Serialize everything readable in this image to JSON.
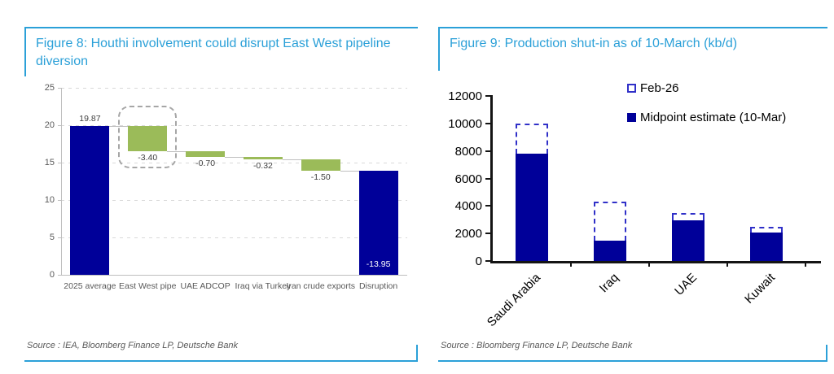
{
  "colors": {
    "accent_blue": "#2BA0D8",
    "navy": "#000099",
    "green": "#9BBB59",
    "dashed_bar_blue": "#3030C8",
    "highlight_gray": "#A6A6A6",
    "grid_gray": "#D9D9D9",
    "axis_gray": "#BFBFBF",
    "label_gray": "#595959",
    "value_gray": "#404040",
    "axis_black": "#141414",
    "inside_label_white": "#FFFFFF"
  },
  "fig8": {
    "title": "Figure 8: Houthi involvement could disrupt East West pipeline diversion",
    "source": "Source : IEA, Bloomberg Finance LP, Deutsche Bank"
  },
  "fig9": {
    "title": "Figure 9: Production shut-in as of 10-March (kb/d)",
    "source": "Source : Bloomberg Finance LP, Deutsche Bank"
  },
  "chart_data": [
    {
      "figure": "Figure 8",
      "type": "bar",
      "subtype": "waterfall",
      "title": "Houthi involvement could disrupt East West pipeline diversion",
      "categories": [
        "2025 average",
        "East West pipe",
        "UAE ADCOP",
        "Iraq via Turkey",
        "Iran crude exports",
        "Disruption"
      ],
      "values": [
        19.87,
        -3.4,
        -0.7,
        -0.32,
        -1.5,
        -13.95
      ],
      "value_labels": [
        "19.87",
        "-3.40",
        "-0.70",
        "-0.32",
        "-1.50",
        "-13.95"
      ],
      "bar_styles": [
        "total",
        "delta",
        "delta",
        "delta",
        "delta",
        "total"
      ],
      "label_positions": [
        "above",
        "below",
        "below",
        "below",
        "below",
        "inside"
      ],
      "ylim": [
        0,
        25
      ],
      "yticks": [
        0,
        5,
        10,
        15,
        20,
        25
      ],
      "highlight_index": 1,
      "grid": "dashed-horizontal",
      "legend_position": "none",
      "xlabel": "",
      "ylabel": ""
    },
    {
      "figure": "Figure 9",
      "type": "bar",
      "subtype": "overlay",
      "title": "Production shut-in as of 10-March (kb/d)",
      "categories": [
        "Saudi Arabia",
        "Iraq",
        "UAE",
        "Kuwait"
      ],
      "series": [
        {
          "name": "Feb-26",
          "style": "dashed-outline",
          "values": [
            10000,
            4300,
            3500,
            2500
          ]
        },
        {
          "name": "Midpoint estimate (10-Mar)",
          "style": "solid",
          "values": [
            7800,
            1450,
            2950,
            2050
          ]
        }
      ],
      "ylim": [
        0,
        12000
      ],
      "yticks": [
        0,
        2000,
        4000,
        6000,
        8000,
        10000,
        12000
      ],
      "legend_position": "top-right",
      "grid": false,
      "xlabel": "",
      "ylabel": ""
    }
  ]
}
